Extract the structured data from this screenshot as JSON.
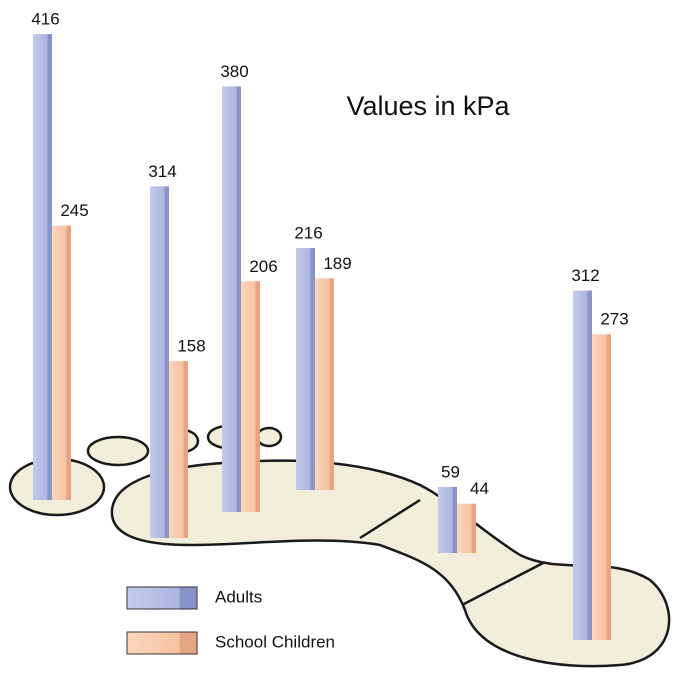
{
  "chart_data": {
    "type": "bar",
    "title": "Values in kPa",
    "categories": [
      null,
      null,
      null,
      null,
      null,
      null
    ],
    "series": [
      {
        "name": "Adults",
        "color": "#b3bce3",
        "values": [
          416,
          314,
          380,
          216,
          59,
          312
        ]
      },
      {
        "name": "School Children",
        "color": "#f9c8a6",
        "values": [
          245,
          158,
          206,
          189,
          44,
          273
        ]
      }
    ]
  }
}
